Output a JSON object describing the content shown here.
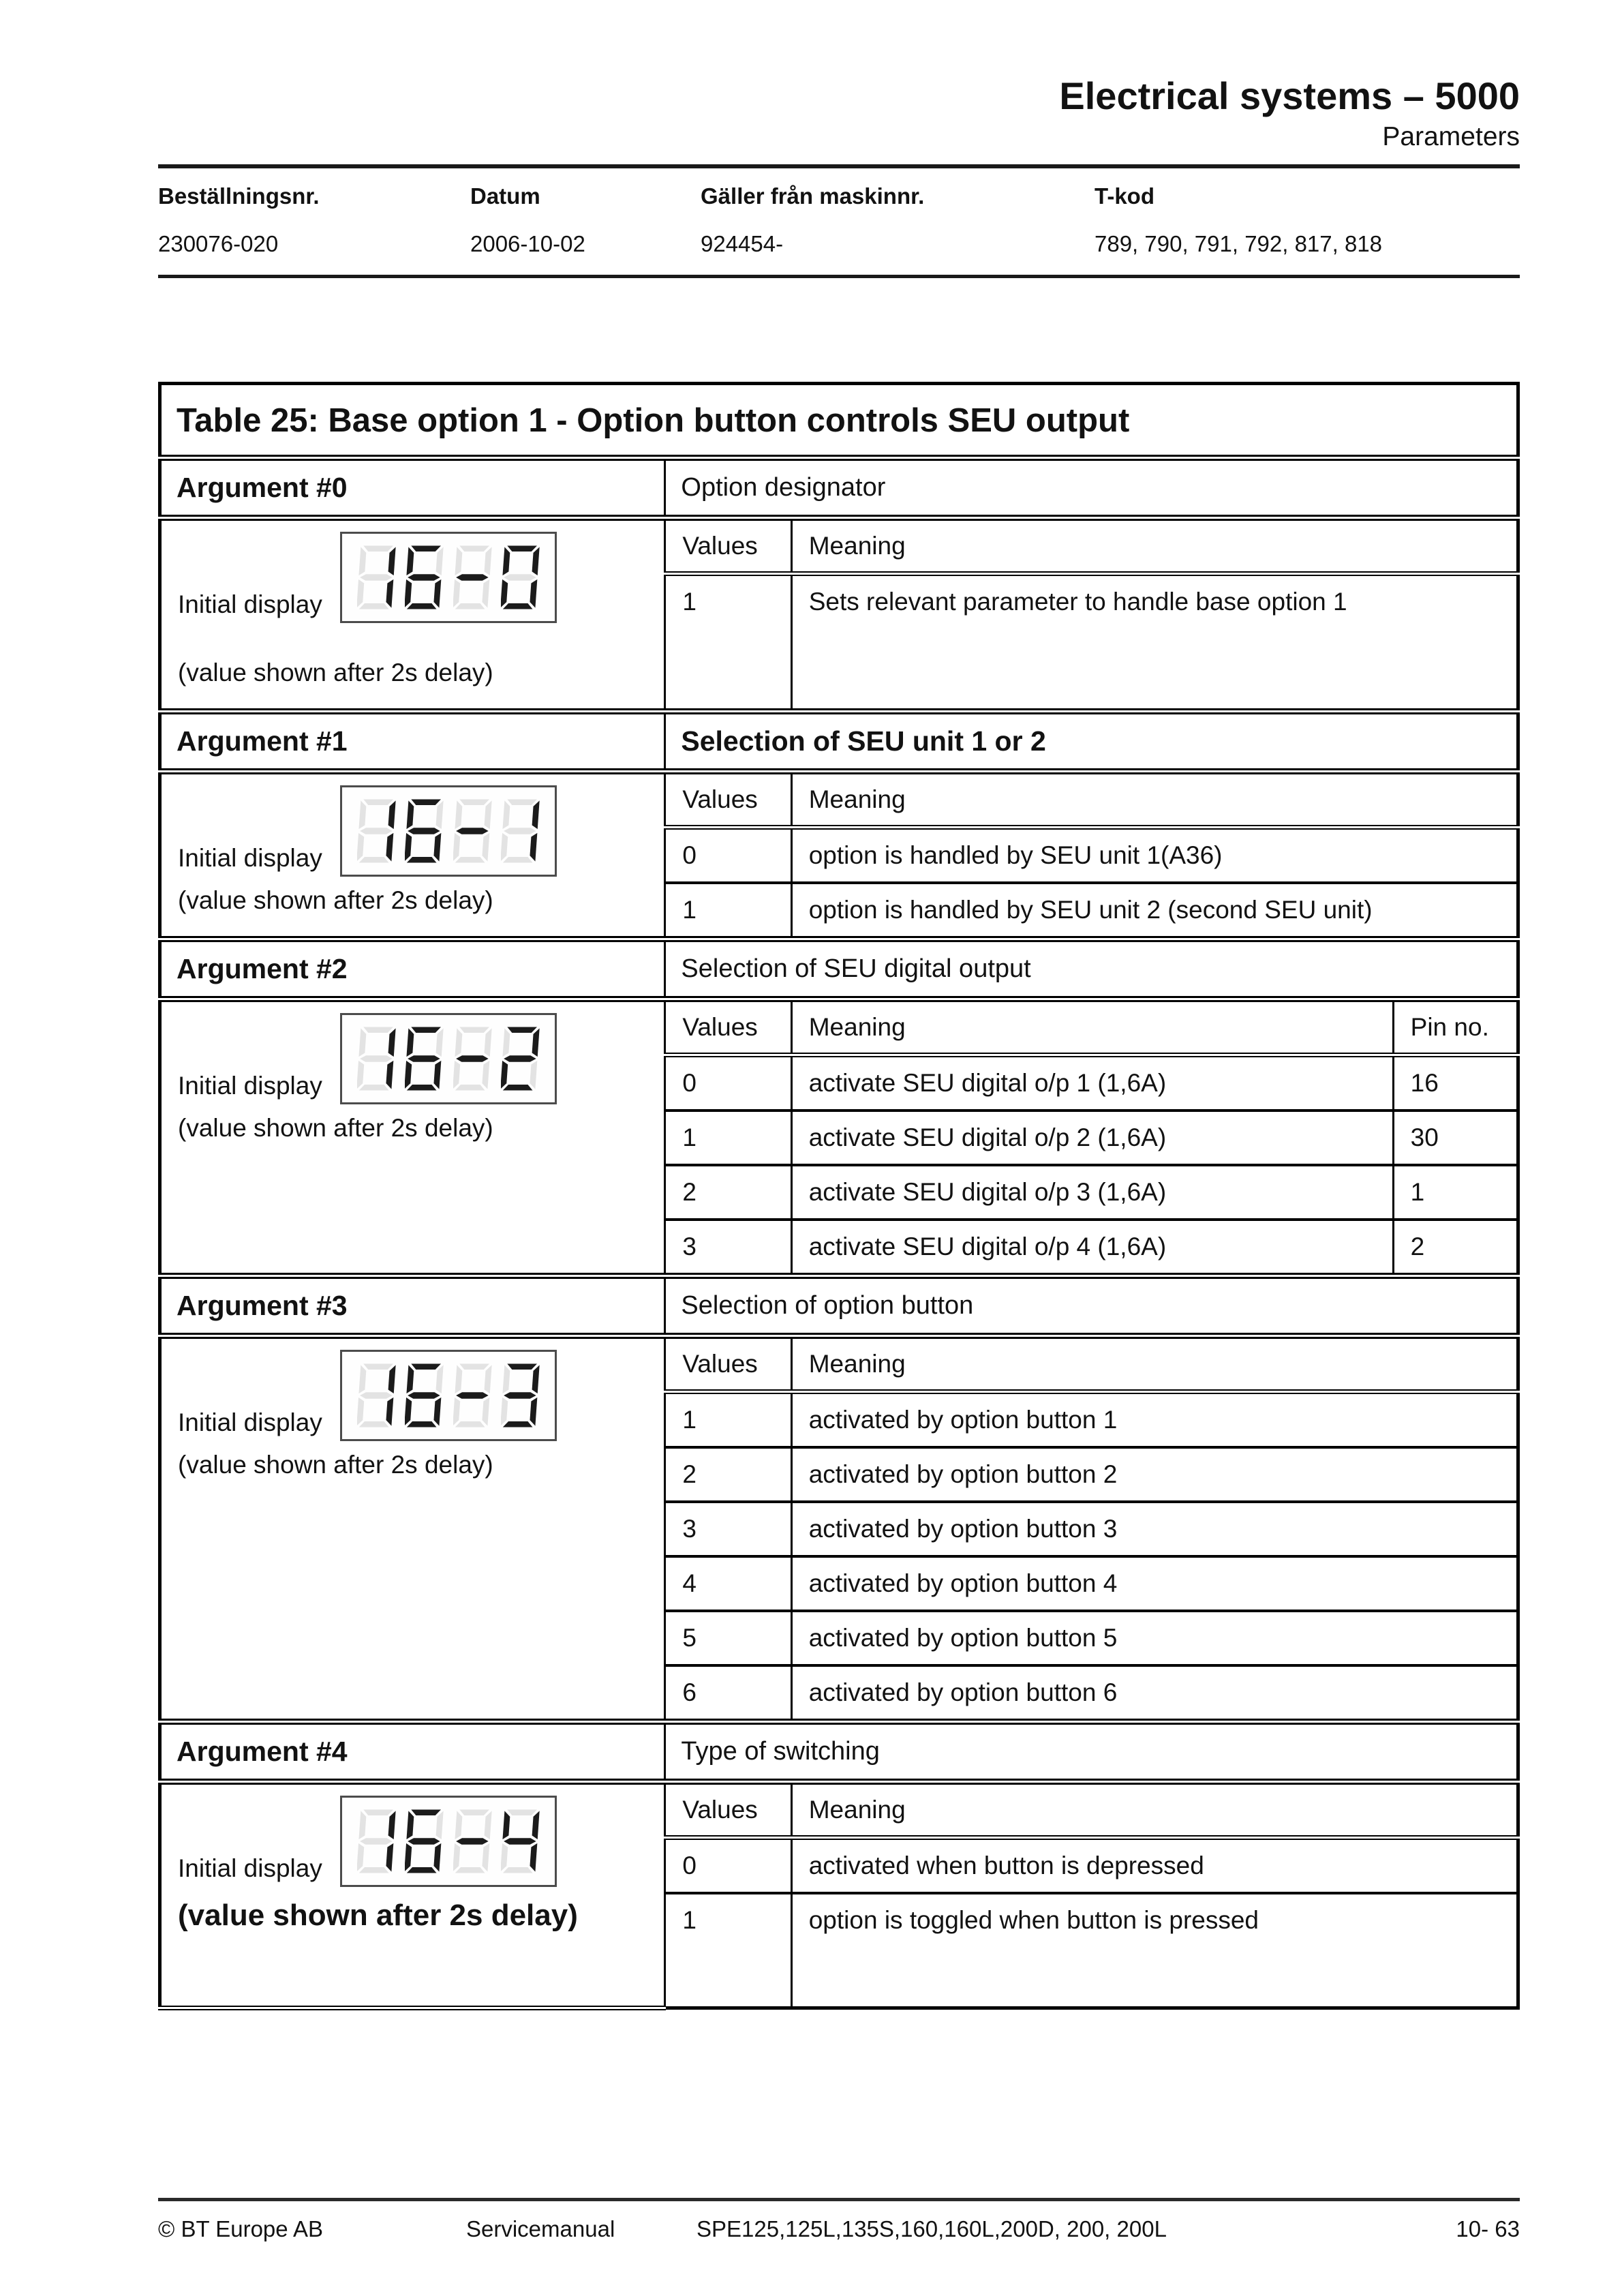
{
  "page": {
    "title": "Electrical systems – 5000",
    "subtitle": "Parameters"
  },
  "doc_header": {
    "fields": [
      {
        "label": "Beställningsnr.",
        "value": "230076-020"
      },
      {
        "label": "Datum",
        "value": "2006-10-02"
      },
      {
        "label": "Gäller från maskinnr.",
        "value": "924454-"
      },
      {
        "label": "T-kod",
        "value": "789, 790, 791, 792, 817, 818"
      }
    ]
  },
  "table": {
    "title": "Table 25: Base option 1 - Option button controls SEU output",
    "labels": {
      "values": "Values",
      "meaning": "Meaning",
      "pin": "Pin no.",
      "initial_display": "Initial display",
      "caption": "(value shown after 2s delay)"
    },
    "arguments": [
      {
        "name": "Argument #0",
        "description": "Option designator",
        "display": "16-0",
        "rows": [
          {
            "value": "1",
            "meaning": "Sets relevant parameter to handle base option 1"
          }
        ]
      },
      {
        "name": "Argument #1",
        "description": "Selection of SEU unit 1 or 2",
        "display": "16-1",
        "rows": [
          {
            "value": "0",
            "meaning": "option is handled by SEU unit 1(A36)"
          },
          {
            "value": "1",
            "meaning": "option is handled by SEU unit 2 (second SEU unit)"
          }
        ]
      },
      {
        "name": "Argument #2",
        "description": "Selection of SEU digital output",
        "display": "16-2",
        "rows": [
          {
            "value": "0",
            "meaning": "activate SEU digital o/p 1 (1,6A)",
            "pin": "16"
          },
          {
            "value": "1",
            "meaning": "activate SEU digital o/p 2 (1,6A)",
            "pin": "30"
          },
          {
            "value": "2",
            "meaning": "activate SEU digital o/p 3 (1,6A)",
            "pin": "1"
          },
          {
            "value": "3",
            "meaning": "activate SEU digital o/p 4 (1,6A)",
            "pin": "2"
          }
        ]
      },
      {
        "name": "Argument #3",
        "description": "Selection of option button",
        "display": "16-3",
        "rows": [
          {
            "value": "1",
            "meaning": "activated by option button 1"
          },
          {
            "value": "2",
            "meaning": "activated by option button 2"
          },
          {
            "value": "3",
            "meaning": "activated by option button 3"
          },
          {
            "value": "4",
            "meaning": "activated by option button 4"
          },
          {
            "value": "5",
            "meaning": "activated by option button 5"
          },
          {
            "value": "6",
            "meaning": "activated by option button 6"
          }
        ]
      },
      {
        "name": "Argument #4",
        "description": "Type of switching",
        "display": "16-4",
        "rows": [
          {
            "value": "0",
            "meaning": "activated when button is depressed"
          },
          {
            "value": "1",
            "meaning": "option is toggled when button is pressed"
          }
        ]
      }
    ]
  },
  "footer": {
    "copyright": "© BT Europe AB",
    "doc_type": "Servicemanual",
    "models": "SPE125,125L,135S,160,160L,200D, 200, 200L",
    "page_number": "10- 63"
  }
}
